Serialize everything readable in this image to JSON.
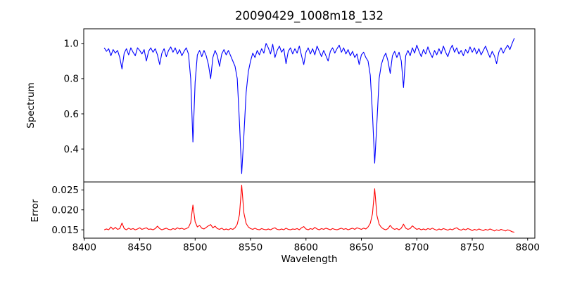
{
  "figure": {
    "background": "#ffffff",
    "text_color": "#000000",
    "spine_color": "#000000"
  },
  "chart_data": {
    "type": "line",
    "title": "20090429_1008m18_132",
    "xlabel": "Wavelength",
    "grid": false,
    "legend": "none",
    "xlim": [
      8399.5,
      8806.5
    ],
    "xticks": [
      8400,
      8450,
      8500,
      8550,
      8600,
      8650,
      8700,
      8750,
      8800
    ],
    "x_start": 8418,
    "x_step": 2,
    "panels": [
      {
        "name": "spectrum",
        "ylabel": "Spectrum",
        "line_color": "#0000ff",
        "ylim": [
          0.213,
          1.083
        ],
        "yticks": [
          0.4,
          0.6,
          0.8,
          1.0
        ],
        "ytick_labels": [
          "0.4",
          "0.6",
          "0.8",
          "1.0"
        ],
        "values": [
          0.975,
          0.955,
          0.97,
          0.93,
          0.965,
          0.945,
          0.96,
          0.92,
          0.855,
          0.945,
          0.97,
          0.935,
          0.975,
          0.95,
          0.93,
          0.975,
          0.96,
          0.94,
          0.965,
          0.9,
          0.955,
          0.975,
          0.95,
          0.97,
          0.935,
          0.88,
          0.945,
          0.97,
          0.925,
          0.96,
          0.98,
          0.95,
          0.975,
          0.94,
          0.965,
          0.93,
          0.955,
          0.975,
          0.94,
          0.8,
          0.44,
          0.78,
          0.935,
          0.96,
          0.925,
          0.96,
          0.93,
          0.88,
          0.8,
          0.92,
          0.96,
          0.93,
          0.87,
          0.94,
          0.965,
          0.935,
          0.96,
          0.93,
          0.9,
          0.87,
          0.8,
          0.55,
          0.26,
          0.48,
          0.72,
          0.84,
          0.9,
          0.945,
          0.92,
          0.96,
          0.935,
          0.97,
          0.945,
          1.0,
          0.975,
          0.94,
          0.995,
          0.92,
          0.96,
          0.985,
          0.95,
          0.97,
          0.885,
          0.955,
          0.975,
          0.94,
          0.97,
          0.945,
          0.985,
          0.93,
          0.88,
          0.95,
          0.975,
          0.94,
          0.97,
          0.935,
          0.985,
          0.955,
          0.925,
          0.96,
          0.93,
          0.9,
          0.955,
          0.975,
          0.945,
          0.97,
          0.99,
          0.95,
          0.975,
          0.94,
          0.965,
          0.93,
          0.955,
          0.92,
          0.94,
          0.88,
          0.935,
          0.95,
          0.92,
          0.9,
          0.82,
          0.6,
          0.32,
          0.55,
          0.8,
          0.88,
          0.92,
          0.945,
          0.9,
          0.83,
          0.93,
          0.955,
          0.92,
          0.95,
          0.9,
          0.75,
          0.93,
          0.96,
          0.93,
          0.975,
          0.945,
          0.99,
          0.955,
          0.925,
          0.965,
          0.94,
          0.98,
          0.945,
          0.92,
          0.96,
          0.935,
          0.97,
          0.94,
          0.985,
          0.95,
          0.925,
          0.965,
          0.99,
          0.95,
          0.975,
          0.94,
          0.96,
          0.93,
          0.965,
          0.945,
          0.98,
          0.95,
          0.975,
          0.94,
          0.97,
          0.935,
          0.96,
          0.985,
          0.95,
          0.92,
          0.955,
          0.93,
          0.885,
          0.95,
          0.975,
          0.945,
          0.97,
          0.99,
          0.965,
          1.0,
          1.03
        ]
      },
      {
        "name": "error",
        "ylabel": "Error",
        "line_color": "#ff0000",
        "ylim": [
          0.0129,
          0.027
        ],
        "yticks": [
          0.015,
          0.02,
          0.025
        ],
        "ytick_labels": [
          "0.015",
          "0.020",
          "0.025"
        ],
        "values": [
          0.015,
          0.0152,
          0.015,
          0.0157,
          0.0151,
          0.0156,
          0.0151,
          0.0153,
          0.0167,
          0.0153,
          0.015,
          0.0154,
          0.0151,
          0.0153,
          0.015,
          0.0152,
          0.0155,
          0.0151,
          0.0153,
          0.0155,
          0.0151,
          0.0152,
          0.015,
          0.0153,
          0.0159,
          0.0153,
          0.015,
          0.0152,
          0.0154,
          0.0151,
          0.015,
          0.0153,
          0.0151,
          0.0155,
          0.0152,
          0.0154,
          0.0151,
          0.0153,
          0.0156,
          0.0168,
          0.0212,
          0.017,
          0.0157,
          0.0161,
          0.0154,
          0.0152,
          0.0156,
          0.016,
          0.0163,
          0.0155,
          0.0159,
          0.0153,
          0.0151,
          0.0154,
          0.015,
          0.0152,
          0.015,
          0.0153,
          0.0151,
          0.0155,
          0.0164,
          0.0188,
          0.0262,
          0.0192,
          0.0166,
          0.0157,
          0.0153,
          0.0151,
          0.0154,
          0.0151,
          0.015,
          0.0153,
          0.0151,
          0.015,
          0.0152,
          0.015,
          0.0153,
          0.0155,
          0.0151,
          0.015,
          0.0152,
          0.015,
          0.0154,
          0.0151,
          0.015,
          0.0152,
          0.0151,
          0.0153,
          0.015,
          0.0155,
          0.0158,
          0.0152,
          0.015,
          0.0153,
          0.0151,
          0.0156,
          0.0152,
          0.015,
          0.0153,
          0.0151,
          0.0154,
          0.0152,
          0.015,
          0.0153,
          0.0151,
          0.015,
          0.0152,
          0.0154,
          0.0151,
          0.0153,
          0.015,
          0.0152,
          0.0154,
          0.0151,
          0.0155,
          0.0153,
          0.0151,
          0.0154,
          0.0152,
          0.0157,
          0.0166,
          0.019,
          0.0253,
          0.0186,
          0.0164,
          0.0156,
          0.0152,
          0.015,
          0.0153,
          0.0161,
          0.0154,
          0.0151,
          0.0153,
          0.015,
          0.0154,
          0.0164,
          0.0154,
          0.0151,
          0.0153,
          0.016,
          0.0155,
          0.0151,
          0.0153,
          0.015,
          0.0152,
          0.015,
          0.0153,
          0.0151,
          0.0154,
          0.0151,
          0.0149,
          0.0152,
          0.015,
          0.0153,
          0.0151,
          0.0149,
          0.0152,
          0.015,
          0.0153,
          0.0155,
          0.0151,
          0.0149,
          0.0152,
          0.015,
          0.0153,
          0.0151,
          0.0148,
          0.0151,
          0.0149,
          0.0152,
          0.015,
          0.0148,
          0.0151,
          0.0149,
          0.0152,
          0.015,
          0.0147,
          0.015,
          0.0148,
          0.0151,
          0.0149,
          0.0147,
          0.015,
          0.0148,
          0.0145,
          0.0144
        ]
      }
    ]
  }
}
